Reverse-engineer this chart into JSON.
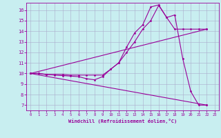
{
  "background_color": "#c8eef0",
  "grid_color": "#aaaacc",
  "line_color": "#990099",
  "xlabel": "Windchill (Refroidissement éolien,°C)",
  "xlim": [
    -0.5,
    23.5
  ],
  "ylim": [
    6.5,
    16.7
  ],
  "yticks": [
    7,
    8,
    9,
    10,
    11,
    12,
    13,
    14,
    15,
    16
  ],
  "xticks": [
    0,
    1,
    2,
    3,
    4,
    5,
    6,
    7,
    8,
    9,
    10,
    11,
    12,
    13,
    14,
    15,
    16,
    17,
    18,
    19,
    20,
    21,
    22,
    23
  ],
  "line1_x": [
    0,
    1,
    2,
    3,
    4,
    5,
    6,
    7,
    8,
    9,
    10,
    11,
    12,
    13,
    14,
    15,
    16,
    17,
    18,
    19,
    20,
    21,
    22
  ],
  "line1_y": [
    10,
    10,
    9.9,
    9.85,
    9.8,
    9.75,
    9.7,
    9.5,
    9.4,
    9.7,
    10.4,
    11.0,
    12.5,
    13.85,
    14.6,
    16.3,
    16.5,
    15.3,
    15.55,
    11.4,
    8.3,
    7.0,
    7.0
  ],
  "line2_x": [
    0,
    1,
    2,
    3,
    4,
    5,
    6,
    7,
    8,
    9,
    10,
    11,
    12,
    13,
    14,
    15,
    16,
    17,
    18,
    19,
    20,
    21,
    22
  ],
  "line2_y": [
    10,
    10,
    9.9,
    9.9,
    9.9,
    9.85,
    9.85,
    9.85,
    9.85,
    9.85,
    10.4,
    11.0,
    12.0,
    13.0,
    14.2,
    15.0,
    16.45,
    15.3,
    14.2,
    14.2,
    14.2,
    14.2,
    14.2
  ],
  "line3_x": [
    0,
    22
  ],
  "line3_y": [
    10,
    14.2
  ],
  "line4_x": [
    0,
    22
  ],
  "line4_y": [
    10,
    7.0
  ]
}
